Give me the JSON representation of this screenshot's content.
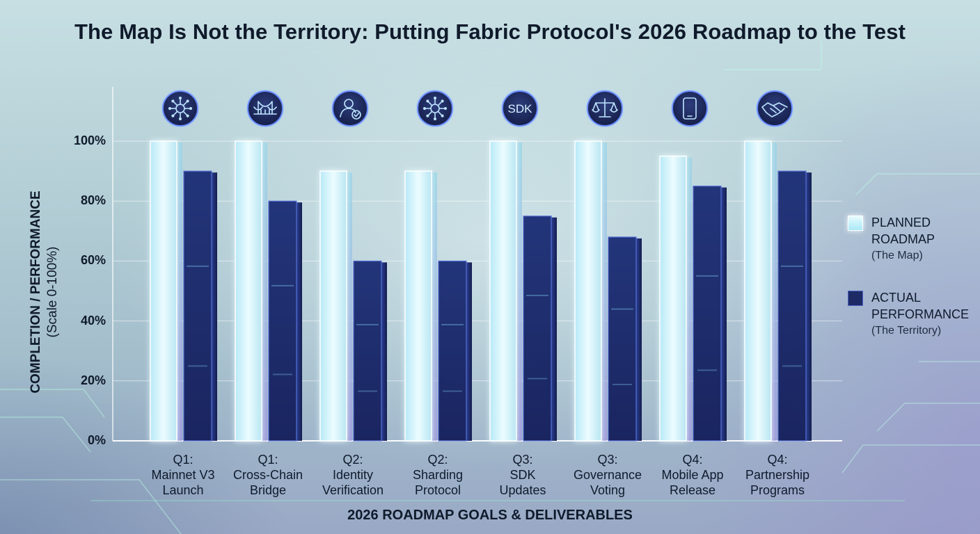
{
  "title": "The Map Is Not the Territory: Putting Fabric Protocol's 2026 Roadmap to the Test",
  "chart_data": {
    "type": "bar",
    "title": "The Map Is Not the Territory: Putting Fabric Protocol's 2026 Roadmap to the Test",
    "ylabel": "COMPLETION / PERFORMANCE",
    "ylabel_sub": "(Scale 0-100%)",
    "xlabel": "2026 ROADMAP GOALS & DELIVERABLES",
    "ylim": [
      0,
      100
    ],
    "yticks": [
      "0%",
      "20%",
      "40%",
      "60%",
      "80%",
      "100%"
    ],
    "ytick_values": [
      0,
      20,
      40,
      60,
      80,
      100
    ],
    "categories": [
      {
        "line1": "Q1:",
        "line2": "Mainnet V3",
        "line3": "Launch",
        "icon": "network-node-icon"
      },
      {
        "line1": "Q1:",
        "line2": "Cross-Chain",
        "line3": "Bridge",
        "icon": "bridge-icon"
      },
      {
        "line1": "Q2:",
        "line2": "Identity",
        "line3": "Verification",
        "icon": "user-check-icon"
      },
      {
        "line1": "Q2:",
        "line2": "Sharding",
        "line3": "Protocol",
        "icon": "network-hub-icon"
      },
      {
        "line1": "Q3:",
        "line2": "SDK",
        "line3": "Updates",
        "icon": "sdk-icon",
        "icon_text": "SDK"
      },
      {
        "line1": "Q3:",
        "line2": "Governance",
        "line3": "Voting",
        "icon": "scales-icon"
      },
      {
        "line1": "Q4:",
        "line2": "Mobile App",
        "line3": "Release",
        "icon": "smartphone-icon"
      },
      {
        "line1": "Q4:",
        "line2": "Partnership",
        "line3": "Programs",
        "icon": "handshake-icon"
      }
    ],
    "series": [
      {
        "name": "PLANNED ROADMAP",
        "note": "(The Map)",
        "values": [
          100,
          100,
          90,
          90,
          100,
          100,
          95,
          100
        ],
        "color": "#dff8fd"
      },
      {
        "name": "ACTUAL PERFORMANCE",
        "note": "(The Territory)",
        "values": [
          90,
          80,
          60,
          60,
          75,
          68,
          85,
          90
        ],
        "color": "#1d2a66"
      }
    ],
    "legend_position": "right",
    "grid": true
  }
}
